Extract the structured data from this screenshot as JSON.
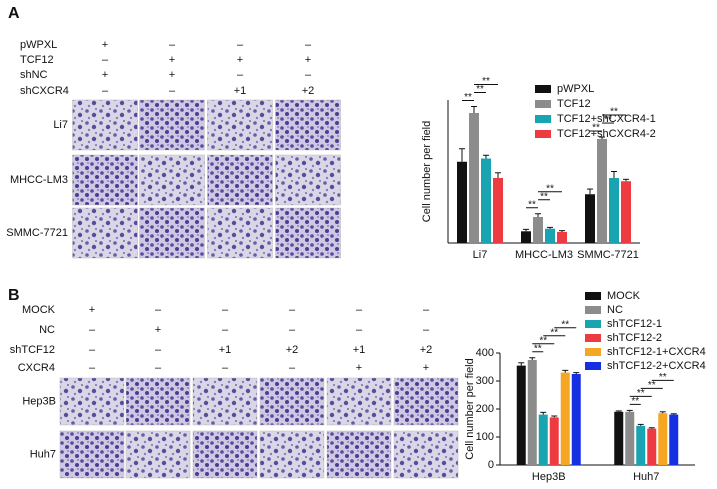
{
  "panel_a": {
    "label": "A",
    "conditions": [
      {
        "label": "pWPXL",
        "marks": [
          "+",
          "–",
          "–",
          "–"
        ]
      },
      {
        "label": "TCF12",
        "marks": [
          "–",
          "+",
          "+",
          "+"
        ]
      },
      {
        "label": "shNC",
        "marks": [
          "+",
          "+",
          "–",
          "–"
        ]
      },
      {
        "label": "shCXCR4",
        "marks": [
          "–",
          "–",
          "+1",
          "+2"
        ]
      }
    ],
    "image_rows": [
      "Li7",
      "MHCC-LM3",
      "SMMC-7721"
    ]
  },
  "panel_b": {
    "label": "B",
    "conditions": [
      {
        "label": "MOCK",
        "marks": [
          "+",
          "–",
          "–",
          "–",
          "–",
          "–"
        ]
      },
      {
        "label": "NC",
        "marks": [
          "–",
          "+",
          "–",
          "–",
          "–",
          "–"
        ]
      },
      {
        "label": "shTCF12",
        "marks": [
          "–",
          "–",
          "+1",
          "+2",
          "+1",
          "+2"
        ]
      },
      {
        "label": "CXCR4",
        "marks": [
          "–",
          "–",
          "–",
          "–",
          "+",
          "+"
        ]
      }
    ],
    "image_rows": [
      "Hep3B",
      "Huh7"
    ]
  },
  "chart_data": [
    {
      "type": "bar",
      "y_label": "Cell number per field",
      "categories": [
        "Li7",
        "MHCC-LM3",
        "SMMC-7721"
      ],
      "ylim": [
        0,
        220
      ],
      "series": [
        {
          "name": "pWPXL",
          "color": "#111111",
          "values": [
            125,
            18,
            75
          ],
          "errors": [
            20,
            3,
            8
          ]
        },
        {
          "name": "TCF12",
          "color": "#8c8c8c",
          "values": [
            200,
            40,
            160
          ],
          "errors": [
            10,
            5,
            3
          ]
        },
        {
          "name": "TCF12+shCXCR4-1",
          "color": "#1aa3b0",
          "values": [
            130,
            22,
            100
          ],
          "errors": [
            5,
            2,
            10
          ]
        },
        {
          "name": "TCF12+shCXCR4-2",
          "color": "#ee3b42",
          "values": [
            100,
            17,
            95
          ],
          "errors": [
            8,
            2,
            3
          ]
        }
      ],
      "significance": [
        "**",
        "**",
        "**",
        "**",
        "**",
        "**",
        "**",
        "**",
        "**"
      ]
    },
    {
      "type": "bar",
      "y_label": "Cell number per field",
      "categories": [
        "Hep3B",
        "Huh7"
      ],
      "ylim": [
        0,
        400
      ],
      "yticks": [
        0,
        100,
        200,
        300,
        400
      ],
      "series": [
        {
          "name": "MOCK",
          "color": "#111111",
          "values": [
            355,
            190
          ],
          "errors": [
            10,
            3
          ]
        },
        {
          "name": "NC",
          "color": "#8c8c8c",
          "values": [
            375,
            190
          ],
          "errors": [
            8,
            5
          ]
        },
        {
          "name": "shTCF12-1",
          "color": "#1aa3b0",
          "values": [
            180,
            140
          ],
          "errors": [
            8,
            5
          ]
        },
        {
          "name": "shTCF12-2",
          "color": "#ee3b42",
          "values": [
            170,
            130
          ],
          "errors": [
            5,
            3
          ]
        },
        {
          "name": "shTCF12-1+CXCR4",
          "color": "#f5a623",
          "values": [
            330,
            185
          ],
          "errors": [
            8,
            5
          ]
        },
        {
          "name": "shTCF12-2+CXCR4",
          "color": "#1530e0",
          "values": [
            325,
            180
          ],
          "errors": [
            5,
            3
          ]
        }
      ],
      "significance": [
        "**",
        "**",
        "**",
        "**",
        "**",
        "**",
        "**",
        "**"
      ]
    }
  ]
}
